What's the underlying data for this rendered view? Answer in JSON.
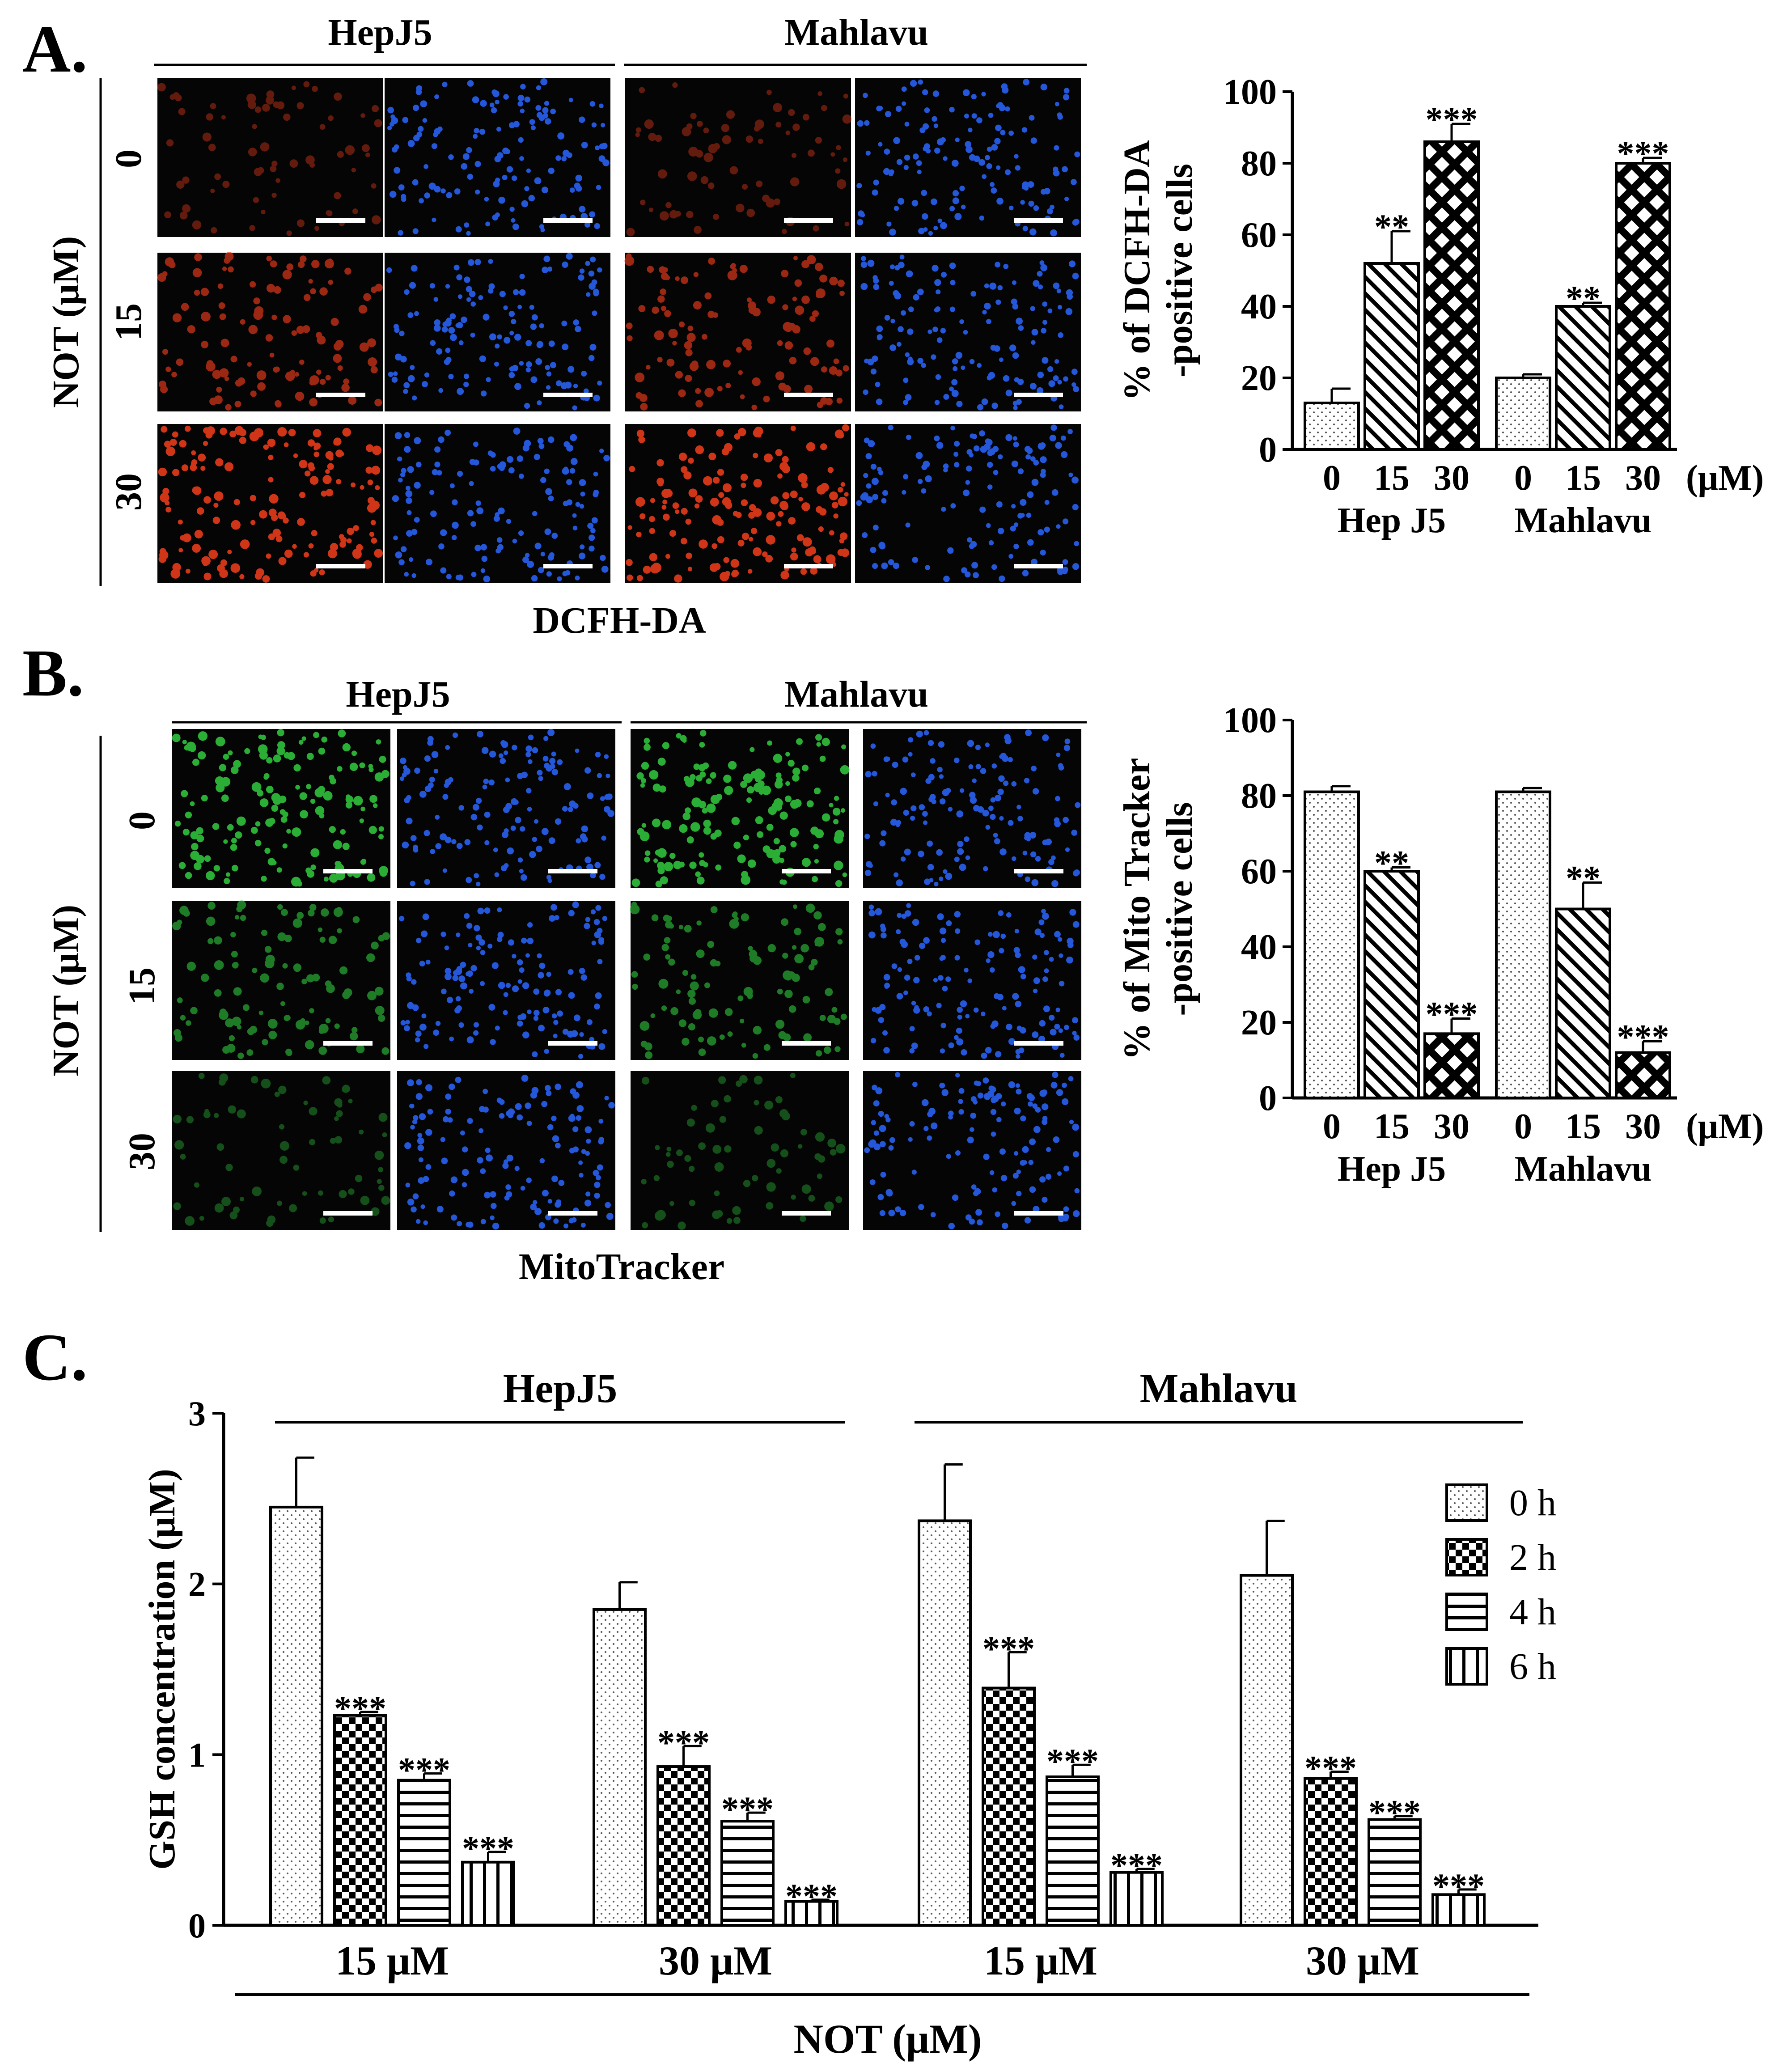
{
  "colors": {
    "red_stain": "#e63a1a",
    "blue_stain": "#2a66ff",
    "green_stain": "#2fbf3a",
    "image_bg": "#050505"
  },
  "panelA": {
    "letter": "A.",
    "groups": [
      "HepJ5",
      "Mahlavu"
    ],
    "row_axis": "NOT (μM)",
    "rows": [
      "0",
      "15",
      "30"
    ],
    "caption": "DCFH-DA",
    "red_intensity": [
      0.25,
      0.6,
      0.95
    ],
    "chart_data": {
      "type": "bar",
      "ylabel_lines": [
        "% of DCFH-DA",
        "-positive cells"
      ],
      "ylim": [
        0,
        100
      ],
      "yticks": [
        0,
        20,
        40,
        60,
        80,
        100
      ],
      "groups": [
        "Hep J5",
        "Mahlavu"
      ],
      "categories": [
        "0",
        "15",
        "30"
      ],
      "unit": "(μM)",
      "series": [
        {
          "group": "Hep J5",
          "values": [
            13,
            52,
            86
          ],
          "errors": [
            4,
            9,
            5
          ],
          "stars": [
            "",
            "**",
            "***"
          ]
        },
        {
          "group": "Mahlavu",
          "values": [
            20,
            40,
            80
          ],
          "errors": [
            1,
            1,
            1.5
          ],
          "stars": [
            "",
            "**",
            "***"
          ]
        }
      ],
      "patterns": [
        "dots",
        "diagonal",
        "crosshatch"
      ]
    }
  },
  "panelB": {
    "letter": "B.",
    "groups": [
      "HepJ5",
      "Mahlavu"
    ],
    "row_axis": "NOT (μM)",
    "rows": [
      "0",
      "15",
      "30"
    ],
    "caption": "MitoTracker",
    "green_intensity": [
      0.95,
      0.55,
      0.22
    ],
    "chart_data": {
      "type": "bar",
      "ylabel_lines": [
        "% of Mito Tracker",
        "-positive cells"
      ],
      "ylim": [
        0,
        100
      ],
      "yticks": [
        0,
        20,
        40,
        60,
        80,
        100
      ],
      "groups": [
        "Hep J5",
        "Mahlavu"
      ],
      "categories": [
        "0",
        "15",
        "30"
      ],
      "unit": "(μM)",
      "series": [
        {
          "group": "Hep J5",
          "values": [
            81,
            60,
            17
          ],
          "errors": [
            1.5,
            1,
            4
          ],
          "stars": [
            "",
            "**",
            "***"
          ]
        },
        {
          "group": "Mahlavu",
          "values": [
            81,
            50,
            12
          ],
          "errors": [
            1,
            7,
            3
          ],
          "stars": [
            "",
            "**",
            "***"
          ]
        }
      ],
      "patterns": [
        "dots",
        "diagonal",
        "crosshatch"
      ]
    }
  },
  "panelC": {
    "letter": "C.",
    "chart_data": {
      "type": "bar",
      "ylabel": "GSH concentration (μM)",
      "ylim": [
        0,
        3
      ],
      "yticks": [
        0,
        1,
        2,
        3
      ],
      "cell_groups": [
        "HepJ5",
        "Mahlavu"
      ],
      "categories": [
        "15 μM",
        "30 μM",
        "15 μM",
        "30 μM"
      ],
      "xlabel": "NOT (μM)",
      "legend": [
        "0 h",
        "2 h",
        "4 h",
        "6 h"
      ],
      "patterns": [
        "dots",
        "checker",
        "horizontal",
        "vertical"
      ],
      "series": [
        {
          "name": "0 h",
          "values": [
            2.45,
            1.85,
            2.37,
            2.05
          ],
          "errors": [
            0.29,
            0.16,
            0.33,
            0.32
          ],
          "stars": [
            "",
            "",
            "",
            ""
          ]
        },
        {
          "name": "2 h",
          "values": [
            1.23,
            0.93,
            1.39,
            0.86
          ],
          "errors": [
            0.02,
            0.12,
            0.21,
            0.04
          ],
          "stars": [
            "***",
            "***",
            "***",
            "***"
          ]
        },
        {
          "name": "4 h",
          "values": [
            0.85,
            0.61,
            0.87,
            0.62
          ],
          "errors": [
            0.04,
            0.05,
            0.07,
            0.02
          ],
          "stars": [
            "***",
            "***",
            "***",
            "***"
          ]
        },
        {
          "name": "6 h",
          "values": [
            0.37,
            0.14,
            0.31,
            0.18
          ],
          "errors": [
            0.06,
            0.01,
            0.02,
            0.03
          ],
          "stars": [
            "***",
            "***",
            "***",
            "***"
          ]
        }
      ]
    }
  }
}
